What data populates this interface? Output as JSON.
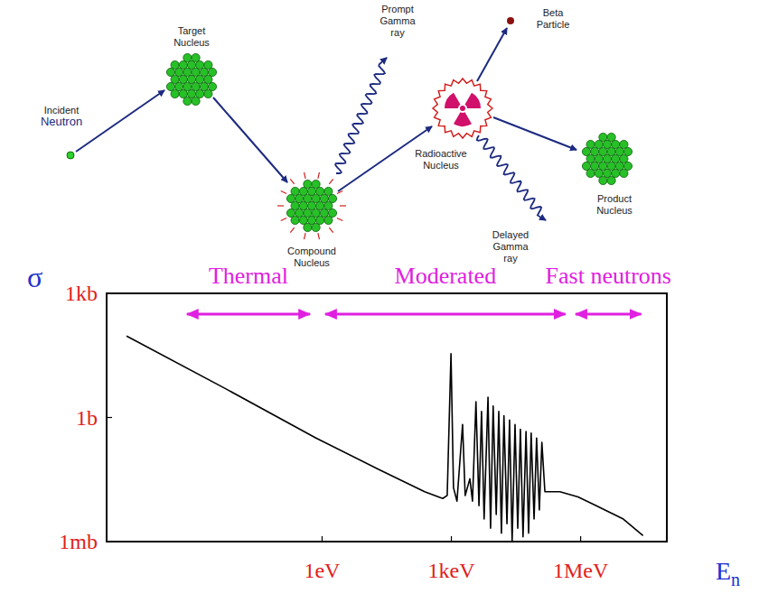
{
  "diagram": {
    "nodes": [
      {
        "label": "Incident Neutron"
      },
      {
        "label": "Target Nucleus"
      },
      {
        "label": "Compound Nucleus"
      },
      {
        "label": "Prompt Gamma ray"
      },
      {
        "label": "Radioactive Nucleus"
      },
      {
        "label": "Beta Particle"
      },
      {
        "label": "Delayed Gamma ray"
      },
      {
        "label": "Product Nucleus"
      }
    ]
  },
  "chart_data": {
    "type": "line",
    "x_label": "En",
    "y_label": "σ",
    "log": true,
    "xlim": [
      1e-05,
      100000000.0
    ],
    "ylim": [
      0.001,
      1000
    ],
    "xticks": [
      {
        "value": 1,
        "label": "1eV"
      },
      {
        "value": 1000,
        "label": "1keV"
      },
      {
        "value": 1000000,
        "label": "1MeV"
      }
    ],
    "yticks": [
      {
        "value": 0.001,
        "label": "1mb"
      },
      {
        "value": 1,
        "label": "1b"
      },
      {
        "value": 1000,
        "label": "1kb"
      }
    ],
    "color": "#000000",
    "ranges": [
      {
        "label": "Thermal",
        "x": [
          0.00066,
          0.58
        ]
      },
      {
        "label": "Moderated",
        "x": [
          1.07,
          490000.0
        ]
      },
      {
        "label": "Fast neutrons",
        "x": [
          690000.0,
          28000000.0
        ]
      }
    ],
    "x": [
      2.9e-05,
      0.0059,
      0.72,
      21,
      240,
      630,
      800,
      980,
      1120,
      1350,
      1820,
      2090,
      2690,
      3090,
      3720,
      4370,
      5010,
      5750,
      7080,
      8130,
      9330,
      11000,
      12600,
      14500,
      16600,
      19500,
      22400,
      25700,
      30000,
      34700,
      40000,
      46000,
      54000,
      62000,
      71000,
      83000,
      95000,
      110000,
      126000,
      148000,
      330000,
      870000,
      2300000,
      9800000,
      28000000
    ],
    "values": [
      93,
      4.9,
      0.32,
      0.055,
      0.016,
      0.011,
      0.013,
      35,
      0.02,
      0.0095,
      0.68,
      0.013,
      0.033,
      0.0095,
      2.4,
      0.0074,
      1.4,
      0.0035,
      3.1,
      0.0021,
      1.9,
      0.0045,
      1.4,
      0.0016,
      1.1,
      0.0027,
      0.87,
      0.001,
      0.68,
      0.0021,
      0.52,
      0.0013,
      0.46,
      0.0016,
      0.42,
      0.0035,
      0.32,
      0.0058,
      0.25,
      0.016,
      0.016,
      0.012,
      0.0074,
      0.0035,
      0.0014
    ]
  }
}
